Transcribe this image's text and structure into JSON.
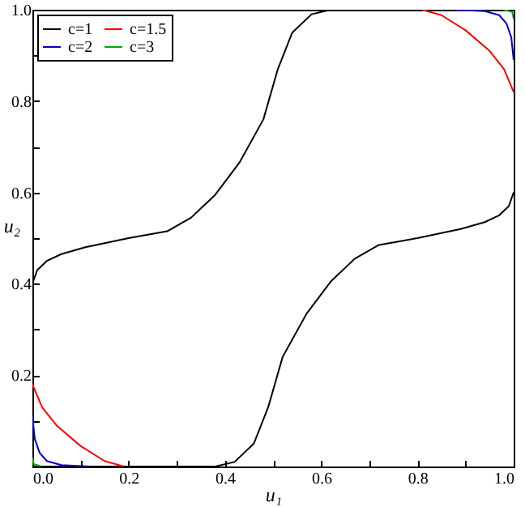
{
  "chart_data": {
    "type": "line",
    "xlabel": "u₁",
    "ylabel": "u₂",
    "xlim": [
      0,
      1
    ],
    "ylim": [
      0,
      1
    ],
    "xticks": [
      {
        "value": 0,
        "label": "0.0"
      },
      {
        "value": 0.1,
        "label": null
      },
      {
        "value": 0.2,
        "label": "0.2"
      },
      {
        "value": 0.3,
        "label": null
      },
      {
        "value": 0.4,
        "label": "0.4"
      },
      {
        "value": 0.5,
        "label": null
      },
      {
        "value": 0.6,
        "label": "0.6"
      },
      {
        "value": 0.7,
        "label": null
      },
      {
        "value": 0.8,
        "label": "0.8"
      },
      {
        "value": 0.9,
        "label": null
      },
      {
        "value": 1,
        "label": "1.0"
      }
    ],
    "yticks": [
      {
        "value": 0.1,
        "label": null
      },
      {
        "value": 0.2,
        "label": "0.2"
      },
      {
        "value": 0.3,
        "label": null
      },
      {
        "value": 0.4,
        "label": "0.4"
      },
      {
        "value": 0.5,
        "label": null
      },
      {
        "value": 0.6,
        "label": "0.6"
      },
      {
        "value": 0.7,
        "label": null
      },
      {
        "value": 0.8,
        "label": "0.8"
      },
      {
        "value": 0.9,
        "label": null
      },
      {
        "value": 1,
        "label": "1.0"
      }
    ],
    "legend": "top left",
    "grid": false,
    "series": [
      {
        "name": "c=1",
        "color": "#000000",
        "x": [
          0,
          0.01,
          0.03,
          0.06,
          0.11,
          0.2,
          0.28,
          0.33,
          0.38,
          0.43,
          0.48,
          0.51,
          0.54,
          0.58,
          0.62,
          1,
          null,
          1,
          0.99,
          0.97,
          0.94,
          0.89,
          0.8,
          0.72,
          0.67,
          0.62,
          0.57,
          0.52,
          0.49,
          0.46,
          0.42,
          0.38,
          0
        ],
        "values": [
          0.4,
          0.43,
          0.45,
          0.465,
          0.48,
          0.5,
          0.515,
          0.545,
          0.595,
          0.665,
          0.76,
          0.87,
          0.95,
          0.99,
          1,
          1,
          null,
          0.6,
          0.57,
          0.55,
          0.535,
          0.52,
          0.5,
          0.485,
          0.455,
          0.405,
          0.335,
          0.24,
          0.13,
          0.05,
          0.01,
          0,
          0
        ]
      },
      {
        "name": "c=1.5",
        "color": "#ff0000",
        "x": [
          0,
          0.02,
          0.05,
          0.1,
          0.15,
          0.19,
          null,
          1,
          0.98,
          0.95,
          0.9,
          0.85,
          0.81
        ],
        "values": [
          0.18,
          0.13,
          0.09,
          0.045,
          0.012,
          0,
          null,
          0.82,
          0.87,
          0.91,
          0.955,
          0.988,
          1
        ]
      },
      {
        "name": "c=2",
        "color": "#0000cc",
        "x": [
          0,
          0.005,
          0.015,
          0.03,
          0.06,
          0.12,
          null,
          1,
          0.995,
          0.985,
          0.97,
          0.94,
          0.88
        ],
        "values": [
          0.11,
          0.06,
          0.03,
          0.012,
          0.003,
          0,
          null,
          0.89,
          0.94,
          0.97,
          0.988,
          0.997,
          1
        ]
      },
      {
        "name": "c=3",
        "color": "#00aa00",
        "x": [
          0,
          0.003,
          0.02,
          null,
          1,
          0.997,
          0.98
        ],
        "values": [
          0.02,
          0.005,
          0,
          null,
          0.98,
          0.995,
          1
        ]
      }
    ]
  }
}
